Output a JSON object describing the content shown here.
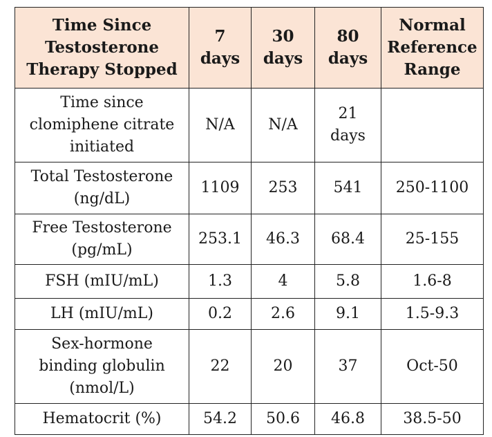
{
  "table": {
    "headers": [
      "Time Since\nTestosterone\nTherapy Stopped",
      "7\ndays",
      "30\ndays",
      "80\ndays",
      "Normal\nReference\nRange"
    ],
    "rows": [
      {
        "label": "Time since\nclomiphene citrate\ninitiated",
        "cells": [
          "N/A",
          "N/A",
          "21\ndays",
          ""
        ]
      },
      {
        "label": "Total Testosterone\n(ng/dL)",
        "cells": [
          "1109",
          "253",
          "541",
          "250-1100"
        ]
      },
      {
        "label": "Free Testosterone\n(pg/mL)",
        "cells": [
          "253.1",
          "46.3",
          "68.4",
          "25-155"
        ]
      },
      {
        "label": "FSH (mIU/mL)",
        "cells": [
          "1.3",
          "4",
          "5.8",
          "1.6-8"
        ]
      },
      {
        "label": "LH (mIU/mL)",
        "cells": [
          "0.2",
          "2.6",
          "9.1",
          "1.5-9.3"
        ]
      },
      {
        "label": "Sex-hormone\nbinding globulin\n(nmol/L)",
        "cells": [
          "22",
          "20",
          "37",
          "Oct-50"
        ]
      },
      {
        "label": "Hematocrit (%)",
        "cells": [
          "54.2",
          "50.6",
          "46.8",
          "38.5-50"
        ]
      }
    ]
  },
  "colors": {
    "header_background": "#fbe4d5",
    "border": "#222222"
  }
}
